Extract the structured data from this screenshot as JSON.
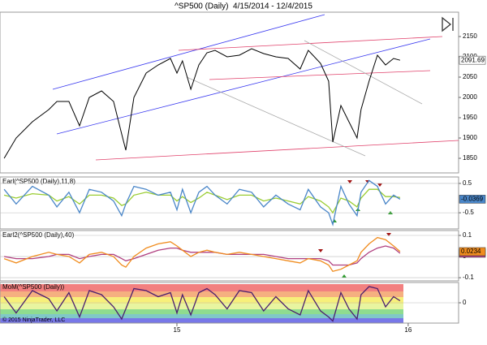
{
  "chart_data": [
    {
      "type": "line",
      "title": "^SP500 (Daily)  4/15/2014 - 12/4/2015",
      "x": [
        2014.253,
        2014.305,
        2014.375,
        2014.446,
        2014.481,
        2014.533,
        2014.579,
        2014.621,
        2014.674,
        2014.726,
        2014.761,
        2014.779,
        2014.814,
        2014.867,
        2014.919,
        2014.972,
        2015.0,
        2015.024,
        2015.06,
        2015.095,
        2015.13,
        2015.165,
        2015.217,
        2015.27,
        2015.323,
        2015.375,
        2015.428,
        2015.481,
        2015.533,
        2015.568,
        2015.621,
        2015.656,
        2015.674,
        2015.709,
        2015.744,
        2015.779,
        2015.796,
        2015.831,
        2015.867,
        2015.902,
        2015.937,
        2015.965
      ],
      "series": [
        {
          "color": "#000000",
          "last_value": 2091.69,
          "values": [
            1850,
            1900,
            1940,
            1970,
            1990,
            1990,
            1930,
            2000,
            2016,
            1990,
            1910,
            1870,
            2000,
            2060,
            2080,
            2096,
            2060,
            2090,
            2020,
            2080,
            2110,
            2116,
            2100,
            2104,
            2120,
            2108,
            2100,
            2096,
            2070,
            2116,
            2084,
            2040,
            1890,
            1980,
            1940,
            1900,
            1970,
            2040,
            2104,
            2080,
            2096,
            2091.69
          ]
        }
      ],
      "xlim": [
        2014.235,
        2016.218
      ],
      "ylim": [
        1814,
        2210
      ],
      "yticks": [
        2150,
        2100,
        2050,
        2000,
        1950,
        1900,
        1850
      ],
      "grid": false
    },
    {
      "type": "line",
      "title": "Earl(^SP500 (Daily),11,8)",
      "x": [
        2014.253,
        2014.305,
        2014.375,
        2014.446,
        2014.481,
        2014.533,
        2014.579,
        2014.621,
        2014.674,
        2014.726,
        2014.761,
        2014.779,
        2014.814,
        2014.867,
        2014.919,
        2014.972,
        2015.0,
        2015.024,
        2015.06,
        2015.095,
        2015.13,
        2015.165,
        2015.217,
        2015.27,
        2015.323,
        2015.375,
        2015.428,
        2015.481,
        2015.533,
        2015.568,
        2015.621,
        2015.656,
        2015.674,
        2015.709,
        2015.744,
        2015.779,
        2015.796,
        2015.831,
        2015.867,
        2015.902,
        2015.937,
        2015.965
      ],
      "series": [
        {
          "color": "#9acd32",
          "values": [
            0.1,
            0,
            0.15,
            0.1,
            -0.1,
            0.05,
            -0.2,
            0.1,
            0.1,
            0,
            -0.25,
            -0.2,
            0.1,
            0.2,
            0.1,
            0.1,
            -0.1,
            0.05,
            -0.15,
            0,
            0.2,
            0.1,
            -0.05,
            0.1,
            0.1,
            -0.1,
            0,
            -0.1,
            -0.2,
            0.05,
            -0.1,
            -0.3,
            -0.5,
            0,
            -0.1,
            -0.3,
            0,
            0.3,
            0.3,
            0.05,
            0.05,
            0.02
          ]
        },
        {
          "color": "#4a86c8",
          "last_value": -0.0369,
          "values": [
            0.3,
            -0.2,
            0.4,
            0.1,
            -0.3,
            0.2,
            -0.5,
            0.3,
            0.2,
            -0.1,
            -0.6,
            -0.2,
            0.4,
            0.3,
            0.1,
            0.2,
            -0.4,
            0.3,
            -0.5,
            0.2,
            0.4,
            0.1,
            -0.2,
            0.3,
            0.2,
            -0.3,
            0.1,
            -0.2,
            -0.4,
            0.3,
            -0.3,
            -0.5,
            -0.9,
            0.4,
            -0.2,
            -0.6,
            0.2,
            0.6,
            0.4,
            -0.2,
            0.1,
            -0.0369
          ]
        }
      ],
      "xlim": [
        2014.235,
        2016.218
      ],
      "ylim": [
        -1.05,
        0.72
      ],
      "yticks": [
        0.5,
        -0.5
      ],
      "grid": true
    },
    {
      "type": "line",
      "title": "Earl2(^SP500 (Daily),40)",
      "x": [
        2014.253,
        2014.305,
        2014.375,
        2014.446,
        2014.481,
        2014.533,
        2014.579,
        2014.621,
        2014.674,
        2014.726,
        2014.761,
        2014.779,
        2014.814,
        2014.867,
        2014.919,
        2014.972,
        2015.0,
        2015.024,
        2015.06,
        2015.095,
        2015.13,
        2015.165,
        2015.217,
        2015.27,
        2015.323,
        2015.375,
        2015.428,
        2015.481,
        2015.533,
        2015.568,
        2015.621,
        2015.656,
        2015.674,
        2015.709,
        2015.744,
        2015.779,
        2015.796,
        2015.831,
        2015.867,
        2015.902,
        2015.937,
        2015.965
      ],
      "series": [
        {
          "color": "#b04080",
          "last_value": 0.0156,
          "values": [
            0,
            -0.01,
            -0.01,
            0,
            0.01,
            0.01,
            -0.01,
            0,
            0.01,
            0.01,
            -0.01,
            -0.02,
            -0.01,
            0.01,
            0.03,
            0.04,
            0.04,
            0.03,
            0.02,
            0.02,
            0.02,
            0.02,
            0.01,
            0.01,
            0.01,
            0.01,
            0,
            -0.01,
            -0.01,
            -0.01,
            -0.01,
            -0.02,
            -0.04,
            -0.04,
            -0.04,
            -0.03,
            -0.01,
            0.02,
            0.04,
            0.05,
            0.04,
            0.0156
          ]
        },
        {
          "color": "#f08c1e",
          "last_value": 0.0234,
          "values": [
            -0.01,
            -0.03,
            0,
            0.02,
            0.01,
            0,
            -0.03,
            0.01,
            0.02,
            0,
            -0.04,
            -0.05,
            0,
            0.04,
            0.06,
            0.07,
            0.05,
            0.03,
            0,
            0.02,
            0.03,
            0.02,
            0.01,
            0.02,
            0.01,
            0,
            -0.01,
            -0.02,
            -0.03,
            -0.01,
            -0.02,
            -0.04,
            -0.07,
            -0.06,
            -0.04,
            -0.02,
            0.02,
            0.06,
            0.09,
            0.08,
            0.05,
            0.0234
          ]
        }
      ],
      "xlim": [
        2014.235,
        2016.218
      ],
      "ylim": [
        -0.115,
        0.123
      ],
      "yticks": [
        0.1,
        0,
        -0.1
      ],
      "grid": true
    },
    {
      "type": "line",
      "title": "MoM(^SP500 (Daily))",
      "copyright": "© 2015 NinjaTrader, LLC",
      "x": [
        2014.253,
        2014.305,
        2014.375,
        2014.446,
        2014.481,
        2014.533,
        2014.579,
        2014.621,
        2014.674,
        2014.726,
        2014.761,
        2014.779,
        2014.814,
        2014.867,
        2014.919,
        2014.972,
        2015.0,
        2015.024,
        2015.06,
        2015.095,
        2015.13,
        2015.165,
        2015.217,
        2015.27,
        2015.323,
        2015.375,
        2015.428,
        2015.481,
        2015.533,
        2015.568,
        2015.621,
        2015.656,
        2015.674,
        2015.709,
        2015.744,
        2015.779,
        2015.796,
        2015.831,
        2015.867,
        2015.902,
        2015.937,
        2015.965
      ],
      "series": [
        {
          "color": "#4b1f6f",
          "values": [
            0.3,
            -0.5,
            0.6,
            0.2,
            -0.4,
            0.5,
            -0.7,
            0.6,
            0.4,
            -0.2,
            -0.8,
            -0.3,
            0.7,
            0.6,
            0.3,
            0.5,
            -0.5,
            0.4,
            -0.6,
            0.5,
            0.7,
            0.4,
            -0.3,
            0.6,
            0.5,
            -0.4,
            0.3,
            -0.3,
            -0.6,
            0.6,
            -0.4,
            -0.7,
            -0.9,
            0.5,
            -0.3,
            -0.8,
            0.4,
            0.8,
            0.7,
            -0.2,
            0.3,
            0.1
          ]
        }
      ],
      "xlim": [
        2014.235,
        2016.218
      ],
      "ylim": [
        -1,
        1
      ],
      "yticks": [
        0
      ],
      "grid": true,
      "xticks": [
        {
          "value": 2015,
          "label": "15"
        },
        {
          "value": 2016,
          "label": "16"
        }
      ]
    }
  ]
}
